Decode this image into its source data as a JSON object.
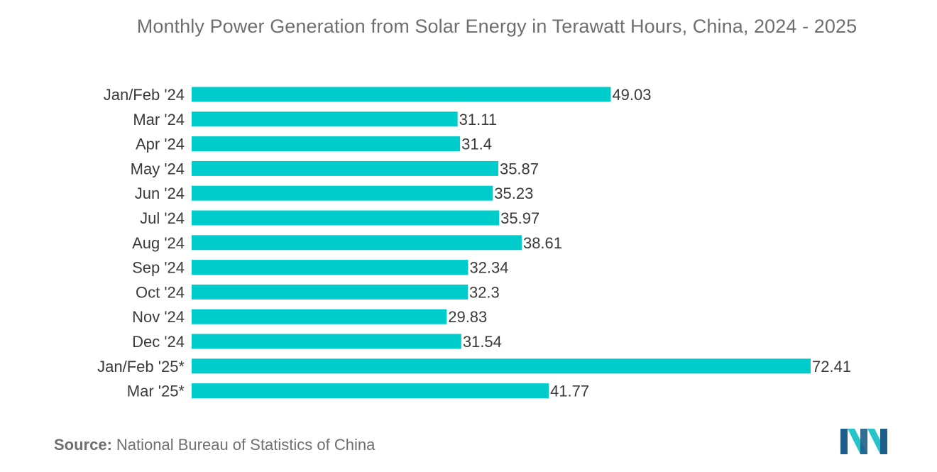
{
  "chart_data": {
    "type": "bar",
    "orientation": "horizontal",
    "title": "Monthly Power Generation from Solar Energy in Terawatt Hours, China, 2024 - 2025",
    "categories": [
      "Jan/Feb '24",
      "Mar '24",
      "Apr '24",
      "May '24",
      "Jun '24",
      "Jul '24",
      "Aug '24",
      "Sep '24",
      "Oct '24",
      "Nov '24",
      "Dec '24",
      "Jan/Feb '25*",
      "Mar '25*"
    ],
    "values": [
      49.03,
      31.11,
      31.4,
      35.87,
      35.23,
      35.97,
      38.61,
      32.34,
      32.3,
      29.83,
      31.54,
      72.41,
      41.77
    ],
    "value_labels": [
      "49.03",
      "31.11",
      "31.4",
      "35.87",
      "35.23",
      "35.97",
      "38.61",
      "32.34",
      "32.3",
      "29.83",
      "31.54",
      "72.41",
      "41.77"
    ],
    "xlim": [
      0,
      72.41
    ],
    "xlabel": "",
    "ylabel": "",
    "grid": false,
    "legend": "none",
    "bar_color": "#00cccc"
  },
  "source": {
    "label": "Source:",
    "text": "National Bureau of Statistics of China"
  },
  "logo": {
    "icon": "mordor-intelligence-logo-icon",
    "colors": [
      "#1d5f8a",
      "#27c4c9"
    ]
  }
}
